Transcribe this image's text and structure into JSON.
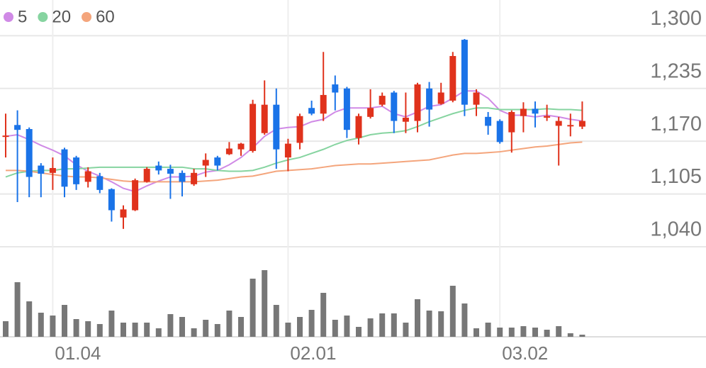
{
  "chart_data": {
    "type": "candlestick",
    "categories": [
      null,
      null,
      null,
      null,
      "01.04",
      null,
      null,
      null,
      null,
      null,
      null,
      null,
      null,
      null,
      null,
      null,
      null,
      null,
      null,
      null,
      null,
      null,
      null,
      null,
      "02.01",
      null,
      null,
      null,
      null,
      null,
      null,
      null,
      null,
      null,
      null,
      null,
      null,
      null,
      null,
      null,
      null,
      null,
      "03.02",
      null,
      null,
      null,
      null,
      null,
      null,
      null
    ],
    "open": [
      1176,
      1190,
      1185,
      1140,
      1131,
      1160,
      1150,
      1120,
      1127,
      1111,
      1076,
      1085,
      1120,
      1140,
      1136,
      1131,
      1117,
      1140,
      1150,
      1154,
      1160,
      1158,
      1180,
      1215,
      1150,
      1168,
      1211,
      1204,
      1240,
      1235,
      1174,
      1200,
      1215,
      1230,
      1194,
      1195,
      1235,
      1216,
      1220,
      1295,
      1215,
      1200,
      1195,
      1181,
      1201,
      1210,
      1199,
      1189,
      1189,
      1188
    ],
    "high": [
      1204,
      1208,
      1187,
      1143,
      1150,
      1162,
      1152,
      1138,
      1131,
      1112,
      1091,
      1124,
      1138,
      1145,
      1141,
      1134,
      1136,
      1155,
      1152,
      1169,
      1168,
      1221,
      1245,
      1235,
      1173,
      1204,
      1220,
      1280,
      1251,
      1237,
      1204,
      1234,
      1230,
      1232,
      1230,
      1242,
      1243,
      1242,
      1280,
      1296,
      1234,
      1206,
      1197,
      1208,
      1218,
      1219,
      1215,
      1200,
      1204,
      1219
    ],
    "low": [
      1150,
      1095,
      1101,
      1101,
      1110,
      1101,
      1110,
      1113,
      1106,
      1071,
      1062,
      1084,
      1119,
      1129,
      1099,
      1102,
      1115,
      1126,
      1134,
      1153,
      1152,
      1156,
      1178,
      1136,
      1133,
      1160,
      1202,
      1195,
      1208,
      1174,
      1166,
      1198,
      1213,
      1180,
      1180,
      1181,
      1188,
      1215,
      1218,
      1201,
      1201,
      1178,
      1167,
      1156,
      1181,
      1187,
      1195,
      1140,
      1176,
      1185
    ],
    "close": [
      1177,
      1184,
      1126,
      1130,
      1137,
      1114,
      1117,
      1133,
      1110,
      1085,
      1086,
      1122,
      1136,
      1134,
      1130,
      1120,
      1131,
      1147,
      1140,
      1161,
      1167,
      1216,
      1215,
      1160,
      1167,
      1201,
      1204,
      1227,
      1230,
      1184,
      1201,
      1211,
      1226,
      1195,
      1199,
      1240,
      1209,
      1230,
      1275,
      1215,
      1230,
      1189,
      1169,
      1206,
      1210,
      1204,
      1201,
      1195,
      1190,
      1195
    ],
    "up_color": "#e0321c",
    "down_color": "#1a73e8",
    "series": [
      {
        "name": "5",
        "color": "#d08ae6",
        "values": [
          1176,
          1178,
          1172,
          1165,
          1159,
          1152,
          1141,
          1133,
          1127,
          1120,
          1112,
          1108,
          1115,
          1121,
          1126,
          1126,
          1127,
          1132,
          1134,
          1141,
          1150,
          1162,
          1176,
          1185,
          1187,
          1188,
          1194,
          1197,
          1206,
          1211,
          1211,
          1211,
          1213,
          1204,
          1200,
          1206,
          1213,
          1215,
          1223,
          1232,
          1232,
          1223,
          1208,
          1202,
          1202,
          1200,
          1202,
          1200,
          1197,
          1195
        ]
      },
      {
        "name": "20",
        "color": "#86d4a0",
        "values": [
          1126,
          1131,
          1133,
          1134,
          1134,
          1136,
          1136,
          1137,
          1138,
          1138,
          1138,
          1138,
          1138,
          1138,
          1138,
          1138,
          1136,
          1136,
          1134,
          1133,
          1133,
          1134,
          1138,
          1143,
          1147,
          1150,
          1155,
          1160,
          1166,
          1171,
          1174,
          1178,
          1180,
          1181,
          1183,
          1188,
          1194,
          1199,
          1204,
          1208,
          1211,
          1211,
          1209,
          1209,
          1209,
          1209,
          1210,
          1209,
          1209,
          1208
        ]
      },
      {
        "name": "60",
        "color": "#f4a57c",
        "values": [
          1134,
          1134,
          1133,
          1131,
          1129,
          1127,
          1126,
          1126,
          1125,
          1123,
          1121,
          1120,
          1120,
          1120,
          1120,
          1120,
          1120,
          1121,
          1122,
          1124,
          1126,
          1127,
          1130,
          1133,
          1134,
          1135,
          1136,
          1138,
          1140,
          1141,
          1142,
          1142,
          1143,
          1144,
          1145,
          1146,
          1147,
          1150,
          1153,
          1155,
          1155,
          1156,
          1157,
          1159,
          1161,
          1163,
          1164,
          1166,
          1168,
          1169
        ]
      }
    ],
    "ylim": [
      1040,
      1344
    ],
    "yticks": [
      {
        "value": 1300,
        "label": "1,300"
      },
      {
        "value": 1235,
        "label": "1,235"
      },
      {
        "value": 1170,
        "label": "1,170"
      },
      {
        "value": 1105,
        "label": "1,105"
      },
      {
        "value": 1040,
        "label": "1,040"
      }
    ],
    "grid": true,
    "volume": {
      "color": "#777777",
      "ylim": [
        0,
        127
      ],
      "values": [
        22,
        77,
        50,
        34,
        30,
        45,
        25,
        22,
        18,
        37,
        20,
        20,
        20,
        12,
        32,
        28,
        12,
        24,
        18,
        37,
        28,
        82,
        94,
        45,
        20,
        28,
        38,
        62,
        24,
        30,
        14,
        26,
        33,
        33,
        20,
        53,
        37,
        36,
        72,
        47,
        12,
        20,
        13,
        13,
        15,
        13,
        10,
        15,
        5,
        3
      ]
    }
  }
}
